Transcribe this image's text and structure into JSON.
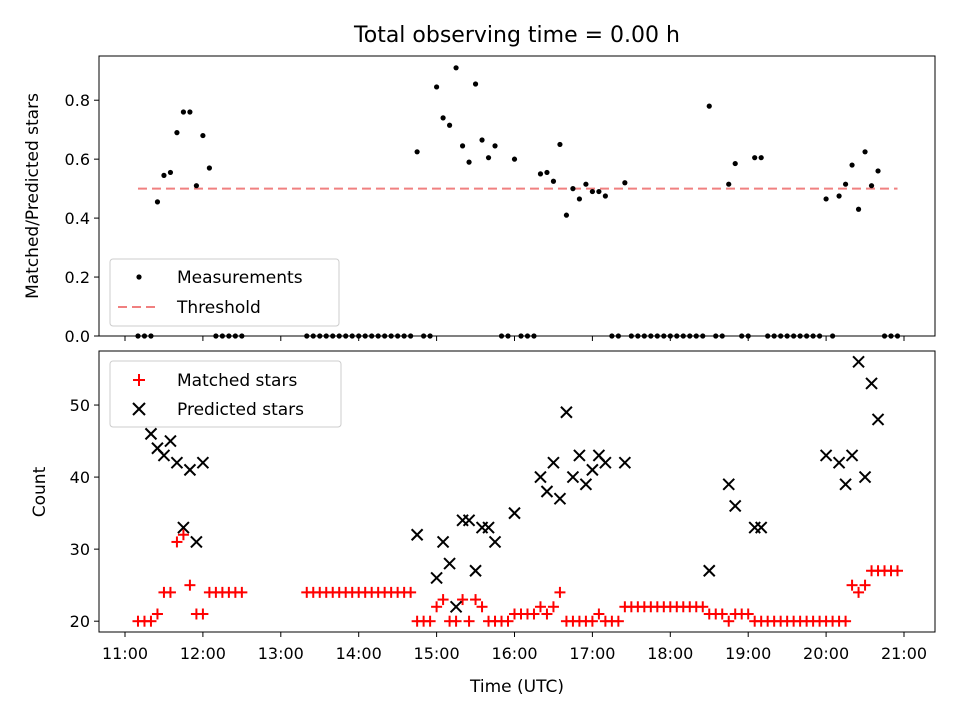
{
  "chart_data": [
    {
      "type": "scatter",
      "title": "Total observing time = 0.00 h",
      "xlabel": "",
      "ylabel": "Matched/Predicted stars",
      "xlim": [
        "11:00",
        "21:00"
      ],
      "ylim": [
        0,
        0.95
      ],
      "yticks": [
        "0.0",
        "0.2",
        "0.4",
        "0.6",
        "0.8"
      ],
      "grid": false,
      "legend": "lower-left",
      "threshold": {
        "name": "Threshold",
        "value": 0.5,
        "x_from": "11:10",
        "x_to": "20:55",
        "color": "#f08080",
        "style": "dashed"
      },
      "series": [
        {
          "name": "Measurements",
          "marker": "dot",
          "color": "#000000",
          "points": [
            [
              "11:10",
              0
            ],
            [
              "11:15",
              0
            ],
            [
              "11:20",
              0
            ],
            [
              "11:25",
              0.455
            ],
            [
              "11:30",
              0.545
            ],
            [
              "11:35",
              0.555
            ],
            [
              "11:40",
              0.69
            ],
            [
              "11:45",
              0.76
            ],
            [
              "11:50",
              0.76
            ],
            [
              "11:55",
              0.51
            ],
            [
              "12:00",
              0.68
            ],
            [
              "12:05",
              0.57
            ],
            [
              "12:10",
              0
            ],
            [
              "12:15",
              0
            ],
            [
              "12:20",
              0
            ],
            [
              "12:25",
              0
            ],
            [
              "12:30",
              0
            ],
            [
              "13:20",
              0
            ],
            [
              "13:25",
              0
            ],
            [
              "13:30",
              0
            ],
            [
              "13:35",
              0
            ],
            [
              "13:40",
              0
            ],
            [
              "13:45",
              0
            ],
            [
              "13:50",
              0
            ],
            [
              "13:55",
              0
            ],
            [
              "14:00",
              0
            ],
            [
              "14:05",
              0
            ],
            [
              "14:10",
              0
            ],
            [
              "14:15",
              0
            ],
            [
              "14:20",
              0
            ],
            [
              "14:25",
              0
            ],
            [
              "14:30",
              0
            ],
            [
              "14:35",
              0
            ],
            [
              "14:40",
              0
            ],
            [
              "14:45",
              0.625
            ],
            [
              "14:50",
              0
            ],
            [
              "14:55",
              0
            ],
            [
              "15:00",
              0.845
            ],
            [
              "15:05",
              0.74
            ],
            [
              "15:10",
              0.715
            ],
            [
              "15:15",
              0.91
            ],
            [
              "15:20",
              0.645
            ],
            [
              "15:25",
              0.59
            ],
            [
              "15:30",
              0.855
            ],
            [
              "15:35",
              0.665
            ],
            [
              "15:40",
              0.605
            ],
            [
              "15:45",
              0.645
            ],
            [
              "15:50",
              0
            ],
            [
              "15:55",
              0
            ],
            [
              "16:00",
              0.6
            ],
            [
              "16:05",
              0
            ],
            [
              "16:10",
              0
            ],
            [
              "16:15",
              0
            ],
            [
              "16:20",
              0.55
            ],
            [
              "16:25",
              0.555
            ],
            [
              "16:30",
              0.525
            ],
            [
              "16:35",
              0.65
            ],
            [
              "16:40",
              0.41
            ],
            [
              "16:45",
              0.5
            ],
            [
              "16:50",
              0.465
            ],
            [
              "16:55",
              0.515
            ],
            [
              "17:00",
              0.49
            ],
            [
              "17:05",
              0.49
            ],
            [
              "17:10",
              0.475
            ],
            [
              "17:15",
              0
            ],
            [
              "17:20",
              0
            ],
            [
              "17:25",
              0.52
            ],
            [
              "17:30",
              0
            ],
            [
              "17:35",
              0
            ],
            [
              "17:40",
              0
            ],
            [
              "17:45",
              0
            ],
            [
              "17:50",
              0
            ],
            [
              "17:55",
              0
            ],
            [
              "18:00",
              0
            ],
            [
              "18:05",
              0
            ],
            [
              "18:10",
              0
            ],
            [
              "18:15",
              0
            ],
            [
              "18:20",
              0
            ],
            [
              "18:25",
              0
            ],
            [
              "18:30",
              0.78
            ],
            [
              "18:35",
              0
            ],
            [
              "18:40",
              0
            ],
            [
              "18:45",
              0.515
            ],
            [
              "18:50",
              0.585
            ],
            [
              "18:55",
              0
            ],
            [
              "19:00",
              0
            ],
            [
              "19:05",
              0.605
            ],
            [
              "19:10",
              0.605
            ],
            [
              "19:15",
              0
            ],
            [
              "19:20",
              0
            ],
            [
              "19:25",
              0
            ],
            [
              "19:30",
              0
            ],
            [
              "19:35",
              0
            ],
            [
              "19:40",
              0
            ],
            [
              "19:45",
              0
            ],
            [
              "19:50",
              0
            ],
            [
              "19:55",
              0
            ],
            [
              "20:00",
              0.465
            ],
            [
              "20:05",
              0
            ],
            [
              "20:10",
              0.475
            ],
            [
              "20:15",
              0.515
            ],
            [
              "20:20",
              0.58
            ],
            [
              "20:25",
              0.43
            ],
            [
              "20:30",
              0.625
            ],
            [
              "20:35",
              0.51
            ],
            [
              "20:40",
              0.56
            ],
            [
              "20:45",
              0
            ],
            [
              "20:50",
              0
            ],
            [
              "20:55",
              0
            ]
          ]
        }
      ]
    },
    {
      "type": "scatter",
      "title": "",
      "xlabel": "Time (UTC)",
      "ylabel": "Count",
      "xlim": [
        "11:00",
        "21:00"
      ],
      "ylim": [
        18.5,
        57.5
      ],
      "yticks": [
        "20",
        "30",
        "40",
        "50"
      ],
      "xticks": [
        "11:00",
        "12:00",
        "13:00",
        "14:00",
        "15:00",
        "16:00",
        "17:00",
        "18:00",
        "19:00",
        "20:00",
        "21:00"
      ],
      "grid": false,
      "legend": "top-left",
      "series": [
        {
          "name": "Matched stars",
          "marker": "plus",
          "color": "#ff0000",
          "points": [
            [
              "11:10",
              20
            ],
            [
              "11:15",
              20
            ],
            [
              "11:20",
              20
            ],
            [
              "11:25",
              21
            ],
            [
              "11:30",
              24
            ],
            [
              "11:35",
              24
            ],
            [
              "11:40",
              31
            ],
            [
              "11:45",
              32
            ],
            [
              "11:50",
              25
            ],
            [
              "11:55",
              21
            ],
            [
              "12:00",
              21
            ],
            [
              "12:05",
              24
            ],
            [
              "12:10",
              24
            ],
            [
              "12:15",
              24
            ],
            [
              "12:20",
              24
            ],
            [
              "12:25",
              24
            ],
            [
              "12:30",
              24
            ],
            [
              "13:20",
              24
            ],
            [
              "13:25",
              24
            ],
            [
              "13:30",
              24
            ],
            [
              "13:35",
              24
            ],
            [
              "13:40",
              24
            ],
            [
              "13:45",
              24
            ],
            [
              "13:50",
              24
            ],
            [
              "13:55",
              24
            ],
            [
              "14:00",
              24
            ],
            [
              "14:05",
              24
            ],
            [
              "14:10",
              24
            ],
            [
              "14:15",
              24
            ],
            [
              "14:20",
              24
            ],
            [
              "14:25",
              24
            ],
            [
              "14:30",
              24
            ],
            [
              "14:35",
              24
            ],
            [
              "14:40",
              24
            ],
            [
              "14:45",
              20
            ],
            [
              "14:50",
              20
            ],
            [
              "14:55",
              20
            ],
            [
              "15:00",
              22
            ],
            [
              "15:05",
              23
            ],
            [
              "15:10",
              20
            ],
            [
              "15:15",
              20
            ],
            [
              "15:20",
              23
            ],
            [
              "15:25",
              20
            ],
            [
              "15:30",
              23
            ],
            [
              "15:35",
              22
            ],
            [
              "15:40",
              20
            ],
            [
              "15:45",
              20
            ],
            [
              "15:50",
              20
            ],
            [
              "15:55",
              20
            ],
            [
              "16:00",
              21
            ],
            [
              "16:05",
              21
            ],
            [
              "16:10",
              21
            ],
            [
              "16:15",
              21
            ],
            [
              "16:20",
              22
            ],
            [
              "16:25",
              21
            ],
            [
              "16:30",
              22
            ],
            [
              "16:35",
              24
            ],
            [
              "16:40",
              20
            ],
            [
              "16:45",
              20
            ],
            [
              "16:50",
              20
            ],
            [
              "16:55",
              20
            ],
            [
              "17:00",
              20
            ],
            [
              "17:05",
              21
            ],
            [
              "17:10",
              20
            ],
            [
              "17:15",
              20
            ],
            [
              "17:20",
              20
            ],
            [
              "17:25",
              22
            ],
            [
              "17:30",
              22
            ],
            [
              "17:35",
              22
            ],
            [
              "17:40",
              22
            ],
            [
              "17:45",
              22
            ],
            [
              "17:50",
              22
            ],
            [
              "17:55",
              22
            ],
            [
              "18:00",
              22
            ],
            [
              "18:05",
              22
            ],
            [
              "18:10",
              22
            ],
            [
              "18:15",
              22
            ],
            [
              "18:20",
              22
            ],
            [
              "18:25",
              22
            ],
            [
              "18:30",
              21
            ],
            [
              "18:35",
              21
            ],
            [
              "18:40",
              21
            ],
            [
              "18:45",
              20
            ],
            [
              "18:50",
              21
            ],
            [
              "18:55",
              21
            ],
            [
              "19:00",
              21
            ],
            [
              "19:05",
              20
            ],
            [
              "19:10",
              20
            ],
            [
              "19:15",
              20
            ],
            [
              "19:20",
              20
            ],
            [
              "19:25",
              20
            ],
            [
              "19:30",
              20
            ],
            [
              "19:35",
              20
            ],
            [
              "19:40",
              20
            ],
            [
              "19:45",
              20
            ],
            [
              "19:50",
              20
            ],
            [
              "19:55",
              20
            ],
            [
              "20:00",
              20
            ],
            [
              "20:05",
              20
            ],
            [
              "20:10",
              20
            ],
            [
              "20:15",
              20
            ],
            [
              "20:20",
              25
            ],
            [
              "20:25",
              24
            ],
            [
              "20:30",
              25
            ],
            [
              "20:35",
              27
            ],
            [
              "20:40",
              27
            ],
            [
              "20:45",
              27
            ],
            [
              "20:50",
              27
            ],
            [
              "20:55",
              27
            ]
          ]
        },
        {
          "name": "Predicted stars",
          "marker": "cross",
          "color": "#000000",
          "points": [
            [
              "11:20",
              46
            ],
            [
              "11:25",
              44
            ],
            [
              "11:30",
              43
            ],
            [
              "11:35",
              45
            ],
            [
              "11:40",
              42
            ],
            [
              "11:45",
              33
            ],
            [
              "11:50",
              41
            ],
            [
              "11:55",
              31
            ],
            [
              "12:00",
              42
            ],
            [
              "14:45",
              32
            ],
            [
              "15:00",
              26
            ],
            [
              "15:05",
              31
            ],
            [
              "15:10",
              28
            ],
            [
              "15:15",
              22
            ],
            [
              "15:20",
              34
            ],
            [
              "15:25",
              34
            ],
            [
              "15:30",
              27
            ],
            [
              "15:35",
              33
            ],
            [
              "15:40",
              33
            ],
            [
              "15:45",
              31
            ],
            [
              "16:00",
              35
            ],
            [
              "16:20",
              40
            ],
            [
              "16:25",
              38
            ],
            [
              "16:30",
              42
            ],
            [
              "16:35",
              37
            ],
            [
              "16:40",
              49
            ],
            [
              "16:45",
              40
            ],
            [
              "16:50",
              43
            ],
            [
              "16:55",
              39
            ],
            [
              "17:00",
              41
            ],
            [
              "17:05",
              43
            ],
            [
              "17:10",
              42
            ],
            [
              "17:25",
              42
            ],
            [
              "18:30",
              27
            ],
            [
              "18:45",
              39
            ],
            [
              "18:50",
              36
            ],
            [
              "19:05",
              33
            ],
            [
              "19:10",
              33
            ],
            [
              "20:00",
              43
            ],
            [
              "20:10",
              42
            ],
            [
              "20:15",
              39
            ],
            [
              "20:20",
              43
            ],
            [
              "20:25",
              56
            ],
            [
              "20:30",
              40
            ],
            [
              "20:35",
              53
            ],
            [
              "20:40",
              48
            ]
          ]
        }
      ]
    }
  ]
}
